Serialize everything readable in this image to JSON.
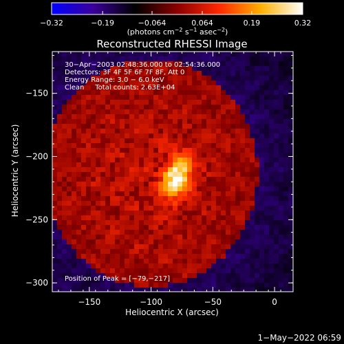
{
  "chart_data": {
    "type": "heatmap",
    "title": "Reconstructed RHESSI Image",
    "xlabel": "Heliocentric X (arcsec)",
    "ylabel": "Heliocentric Y (arcsec)",
    "xlim": [
      -180,
      15
    ],
    "ylim": [
      -307,
      -117
    ],
    "x_ticks": [
      {
        "value": -150,
        "label": "−150"
      },
      {
        "value": -100,
        "label": "−100"
      },
      {
        "value": -50,
        "label": "−50"
      },
      {
        "value": 0,
        "label": "0"
      }
    ],
    "y_ticks": [
      {
        "value": -150,
        "label": "−150"
      },
      {
        "value": -200,
        "label": "−200"
      },
      {
        "value": -250,
        "label": "−250"
      },
      {
        "value": -300,
        "label": "−300"
      }
    ],
    "colorbar": {
      "range": [
        -0.32,
        0.32
      ],
      "tick_values": [
        -0.32,
        -0.19,
        -0.064,
        0.064,
        0.19,
        0.32
      ],
      "tick_labels": [
        "−0.32",
        "−0.19",
        "−0.064",
        "0.064",
        "0.19",
        "0.32"
      ],
      "unit_main": "(photons cm",
      "unit_exp1": "−2",
      "unit_mid": " s",
      "unit_exp2": "−1",
      "unit_tail": " asec",
      "unit_exp3": "−2",
      "unit_close": ")",
      "colors": [
        "#0000ff",
        "#3a0098",
        "#000000",
        "#8a0000",
        "#ff2800",
        "#ffb000",
        "#ffffff"
      ]
    },
    "info_lines": [
      "30−Apr−2003 02:48:36.000 to 02:54:36.000",
      "Detectors: 3F 4F 5F 6F 7F 8F, Att 0",
      "Energy Range: 3.0 − 6.0 keV",
      "Clean     Total counts: 2.63E+04"
    ],
    "peak_label": "Position of Peak = [−79,−217]",
    "peak": {
      "x": -79,
      "y": -217,
      "value": 0.32
    }
  },
  "footer": {
    "timestamp": "1−May−2022 06:59"
  }
}
